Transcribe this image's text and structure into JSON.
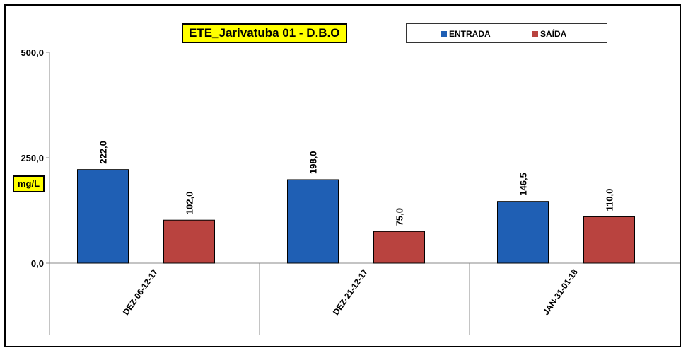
{
  "chart_data": {
    "type": "bar",
    "title": "ETE_Jarivatuba 01 - D.B.O",
    "ylabel": "mg/L",
    "xlabel": "",
    "categories": [
      "DEZ-06-12-17",
      "DEZ-21-12-17",
      "JAN-31-01-18"
    ],
    "series": [
      {
        "name": "ENTRADA",
        "color": "#1f5fb4",
        "values": [
          222.0,
          198.0,
          146.5
        ],
        "labels": [
          "222,0",
          "198,0",
          "146,5"
        ]
      },
      {
        "name": "SAÍDA",
        "color": "#b9433f",
        "values": [
          102.0,
          75.0,
          110.0
        ],
        "labels": [
          "102,0",
          "75,0",
          "110,0"
        ]
      }
    ],
    "ylim": [
      0,
      500
    ],
    "yticks": [
      0,
      250,
      500
    ],
    "ytick_labels": [
      "0,0",
      "250,0",
      "500,0"
    ],
    "grid": false,
    "legend_position": "top-right"
  }
}
